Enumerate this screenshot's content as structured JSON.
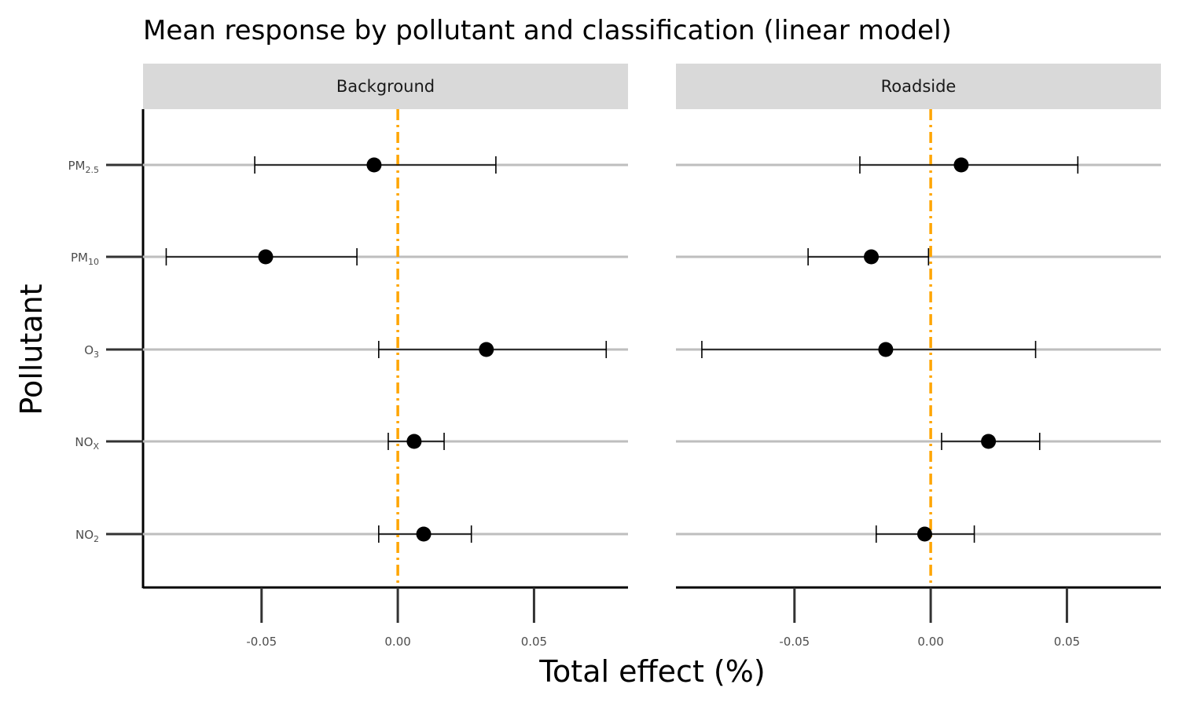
{
  "chart_data": {
    "type": "scatter",
    "title": "Mean response by pollutant and classification (linear model)",
    "xlabel": "Total effect (%)",
    "ylabel": "Pollutant",
    "xlim": [
      -0.0935,
      0.0845
    ],
    "x_ticks": [
      -0.05,
      0.0,
      0.05
    ],
    "x_tick_labels": [
      "-0.05",
      "0.00",
      "0.05"
    ],
    "reference_line": {
      "x": 0,
      "style": "dot-dash",
      "color": "#FFA500"
    },
    "categories": [
      "PM2.5",
      "PM10",
      "O3",
      "NOX",
      "NO2"
    ],
    "category_labels": [
      {
        "base": "PM",
        "sub": "2.5"
      },
      {
        "base": "PM",
        "sub": "10"
      },
      {
        "base": "O",
        "sub": "3"
      },
      {
        "base": "NO",
        "sub": "X"
      },
      {
        "base": "NO",
        "sub": "2"
      }
    ],
    "panels": [
      {
        "name": "Background",
        "points": [
          {
            "pollutant": "PM2.5",
            "mean": -0.0087,
            "lower": -0.0525,
            "upper": 0.036
          },
          {
            "pollutant": "PM10",
            "mean": -0.0485,
            "lower": -0.085,
            "upper": -0.015
          },
          {
            "pollutant": "O3",
            "mean": 0.0325,
            "lower": -0.007,
            "upper": 0.0765
          },
          {
            "pollutant": "NOX",
            "mean": 0.006,
            "lower": -0.0035,
            "upper": 0.017
          },
          {
            "pollutant": "NO2",
            "mean": 0.0095,
            "lower": -0.007,
            "upper": 0.027
          }
        ]
      },
      {
        "name": "Roadside",
        "points": [
          {
            "pollutant": "PM2.5",
            "mean": 0.0112,
            "lower": -0.026,
            "upper": 0.054
          },
          {
            "pollutant": "PM10",
            "mean": -0.0218,
            "lower": -0.045,
            "upper": -0.0008
          },
          {
            "pollutant": "O3",
            "mean": -0.0165,
            "lower": -0.084,
            "upper": 0.0385
          },
          {
            "pollutant": "NOX",
            "mean": 0.0212,
            "lower": 0.004,
            "upper": 0.04
          },
          {
            "pollutant": "NO2",
            "mean": -0.0022,
            "lower": -0.02,
            "upper": 0.016
          }
        ]
      }
    ],
    "colors": {
      "point": "#000000",
      "errorbar": "#000000",
      "row_line": "#BEBEBE",
      "strip_background": "#D9D9D9",
      "reference_line": "#FFA500"
    }
  }
}
